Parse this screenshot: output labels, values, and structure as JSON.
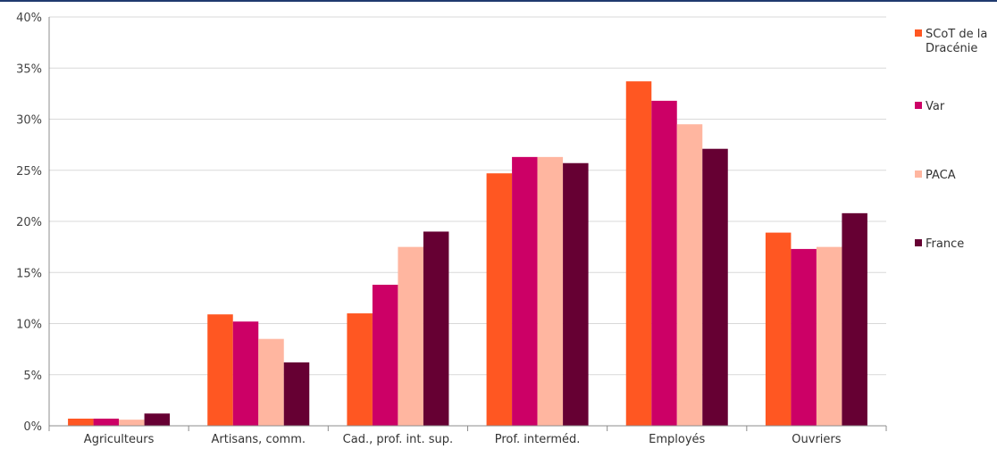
{
  "chart_data": {
    "type": "bar",
    "categories": [
      "Agriculteurs",
      "Artisans, comm.",
      "Cad., prof. int. sup.",
      "Prof. interméd.",
      "Employés",
      "Ouvriers"
    ],
    "series": [
      {
        "name": "SCoT de la Dracénie",
        "legend_lines": [
          "SCoT de la",
          "Dracénie"
        ],
        "color": "#FF5722",
        "values": [
          0.7,
          10.9,
          11.0,
          24.7,
          33.7,
          18.9
        ]
      },
      {
        "name": "Var",
        "legend_lines": [
          "Var"
        ],
        "color": "#CC0066",
        "values": [
          0.7,
          10.2,
          13.8,
          26.3,
          31.8,
          17.3
        ]
      },
      {
        "name": "PACA",
        "legend_lines": [
          "PACA"
        ],
        "color": "#FFB6A0",
        "values": [
          0.6,
          8.5,
          17.5,
          26.3,
          29.5,
          17.5
        ]
      },
      {
        "name": "France",
        "legend_lines": [
          "France"
        ],
        "color": "#660033",
        "values": [
          1.2,
          6.2,
          19.0,
          25.7,
          27.1,
          20.8
        ]
      }
    ],
    "y_ticks": [
      "0%",
      "5%",
      "10%",
      "15%",
      "20%",
      "25%",
      "30%",
      "35%",
      "40%"
    ],
    "ylim": [
      0,
      40
    ],
    "grid": true,
    "legend_position": "right"
  }
}
